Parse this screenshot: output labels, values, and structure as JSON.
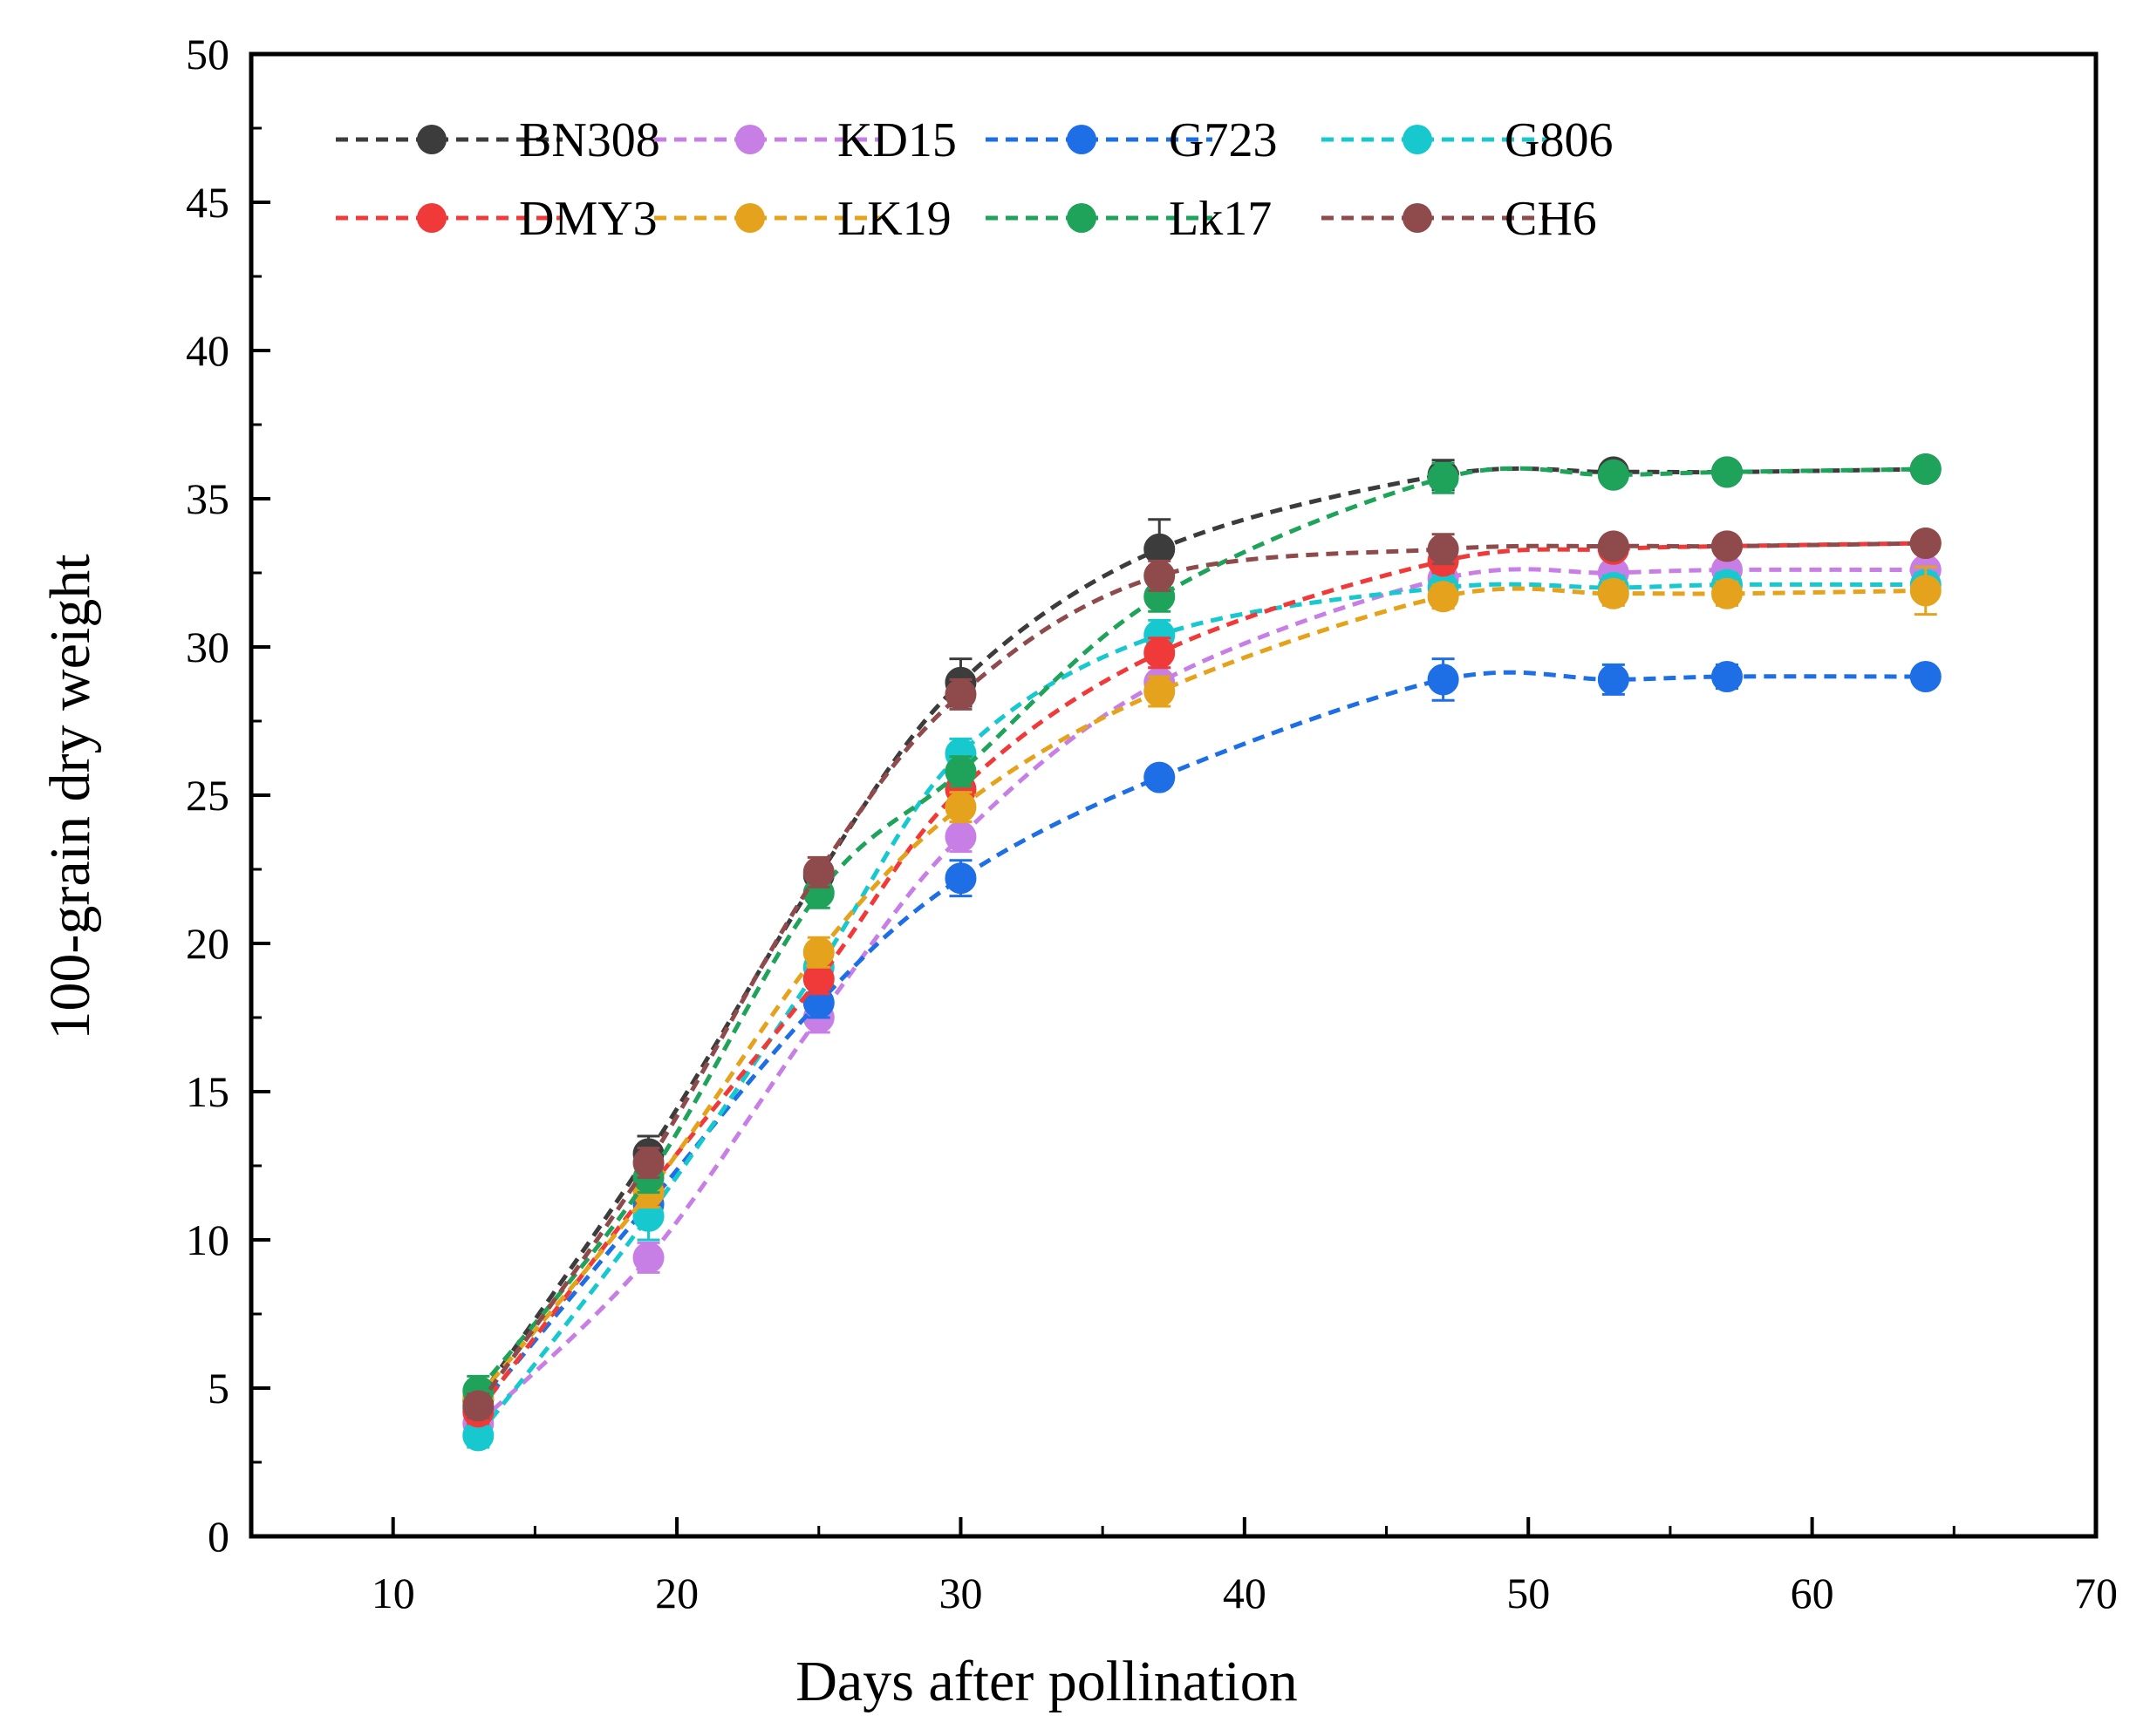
{
  "chart_data": {
    "type": "line",
    "title": "",
    "xlabel": "Days after pollination",
    "ylabel": "100-grain dry weight",
    "xlim": [
      5,
      70
    ],
    "ylim": [
      0,
      50
    ],
    "x_ticks": [
      10,
      20,
      30,
      40,
      50,
      60,
      70
    ],
    "y_ticks": [
      0,
      5,
      10,
      15,
      20,
      25,
      30,
      35,
      40,
      45,
      50
    ],
    "grid": false,
    "legend_position": "top",
    "line_style": "dashed",
    "x": [
      13,
      19,
      25,
      30,
      37,
      47,
      53,
      57,
      64
    ],
    "series": [
      {
        "name": "BN308",
        "color": "#3c3c3c",
        "values": [
          4.6,
          12.9,
          22.3,
          28.8,
          33.3,
          35.8,
          35.9,
          35.9,
          36.0
        ],
        "errors": [
          0.5,
          0.6,
          0.4,
          0.8,
          1.0,
          0.5,
          0.3,
          0.3,
          0.3
        ]
      },
      {
        "name": "KD15",
        "color": "#c77fe6",
        "values": [
          3.8,
          9.4,
          17.5,
          23.6,
          28.8,
          32.3,
          32.5,
          32.6,
          32.6
        ],
        "errors": [
          0.4,
          0.5,
          0.5,
          0.5,
          0.5,
          0.4,
          0.3,
          0.3,
          0.3
        ]
      },
      {
        "name": "G723",
        "color": "#1e6fe6",
        "values": [
          4.3,
          11.2,
          18.0,
          22.2,
          25.6,
          28.9,
          28.9,
          29.0,
          29.0
        ],
        "errors": [
          0.4,
          0.6,
          0.5,
          0.6,
          0.3,
          0.7,
          0.5,
          0.4,
          0.3
        ]
      },
      {
        "name": "G806",
        "color": "#17c8cf",
        "values": [
          3.4,
          10.8,
          19.2,
          26.4,
          30.4,
          32.0,
          32.0,
          32.1,
          32.1
        ],
        "errors": [
          0.4,
          0.8,
          0.6,
          0.5,
          0.5,
          0.4,
          0.4,
          0.4,
          0.4
        ]
      },
      {
        "name": "DMY3",
        "color": "#f03a3a",
        "values": [
          4.2,
          11.7,
          18.8,
          25.2,
          29.8,
          32.9,
          33.3,
          33.4,
          33.5
        ],
        "errors": [
          0.4,
          0.5,
          0.5,
          0.5,
          0.5,
          0.4,
          0.3,
          0.3,
          0.3
        ]
      },
      {
        "name": "LK19",
        "color": "#e5a21c",
        "values": [
          4.7,
          11.6,
          19.7,
          24.6,
          28.5,
          31.7,
          31.8,
          31.8,
          31.9
        ],
        "errors": [
          0.5,
          0.5,
          0.5,
          0.5,
          0.5,
          0.4,
          0.4,
          0.4,
          0.8
        ]
      },
      {
        "name": "Lk17",
        "color": "#1fa35a",
        "values": [
          4.9,
          12.1,
          21.7,
          25.8,
          31.7,
          35.7,
          35.8,
          35.9,
          36.0
        ],
        "errors": [
          0.5,
          0.5,
          0.5,
          0.5,
          0.5,
          0.5,
          0.3,
          0.3,
          0.3
        ]
      },
      {
        "name": "CH6",
        "color": "#8f4b4b",
        "values": [
          4.4,
          12.6,
          22.4,
          28.4,
          32.4,
          33.3,
          33.4,
          33.4,
          33.5
        ],
        "errors": [
          0.4,
          0.5,
          0.5,
          0.5,
          0.5,
          0.5,
          0.3,
          0.3,
          0.3
        ]
      }
    ]
  }
}
